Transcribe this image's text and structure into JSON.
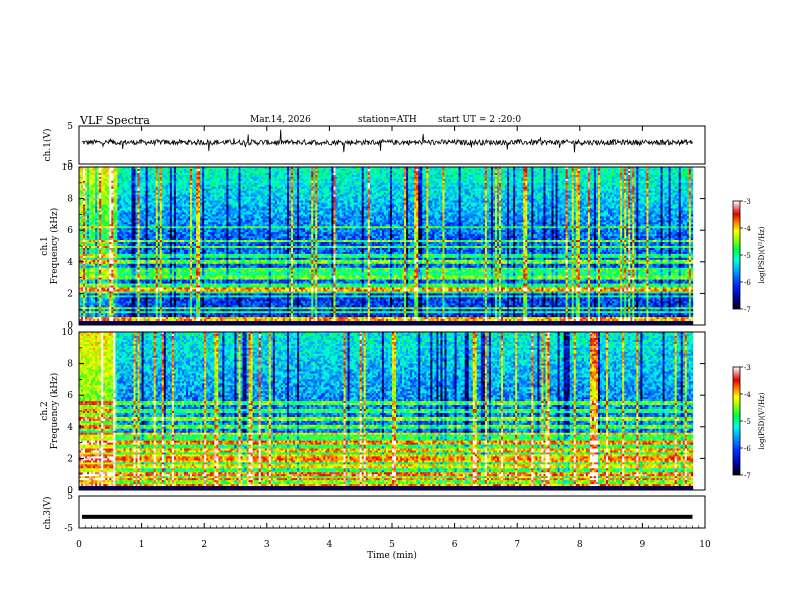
{
  "header": {
    "title": "VLF  Spectra",
    "date": "Mar.14, 2026",
    "station": "station=ATH",
    "start": "start  UT  =   2  :20:0"
  },
  "chart_data": [
    {
      "type": "line",
      "name": "ch1-waveform",
      "ylabel": "ch.1(V)",
      "ylim": [
        -5,
        5
      ],
      "y_ticks": [
        "5",
        "-5"
      ],
      "xlim": [
        0,
        10
      ],
      "description_level": 0.7
    },
    {
      "type": "heatmap",
      "name": "ch1-spectrogram",
      "channel_label": "ch.1",
      "ylabel": "Frequency (kHz)",
      "ylim": [
        0,
        10
      ],
      "y_ticks": [
        "0",
        "2",
        "4",
        "6",
        "8",
        "10"
      ],
      "xlim": [
        0,
        10
      ],
      "bands_khz": [
        0.4,
        0.8,
        1.05,
        1.8,
        2.1,
        2.25,
        2.4,
        2.55,
        3.0,
        3.25,
        3.5,
        4.0,
        4.4,
        4.95,
        5.3,
        6.2
      ],
      "colorbar": {
        "label": "log(PSD)(V²/Hz)",
        "min": -7,
        "max": -3,
        "ticks": [
          "-3",
          "-4",
          "-5",
          "-6",
          "-7"
        ]
      }
    },
    {
      "type": "heatmap",
      "name": "ch2-spectrogram",
      "channel_label": "ch.2",
      "ylabel": "Frequency (kHz)",
      "ylim": [
        0,
        10
      ],
      "y_ticks": [
        "0",
        "2",
        "4",
        "6",
        "8",
        "10"
      ],
      "xlim": [
        0,
        10
      ],
      "bands_khz": [
        0.3,
        0.7,
        1.0,
        1.5,
        1.8,
        2.0,
        2.2,
        2.5,
        3.0,
        3.55,
        4.0,
        4.5,
        5.0,
        5.5
      ],
      "colorbar": {
        "label": "log(PSD)(V²/Hz)",
        "min": -7,
        "max": -3,
        "ticks": [
          "-3",
          "-4",
          "-5",
          "-6",
          "-7"
        ]
      }
    },
    {
      "type": "line",
      "name": "ch3-waveform",
      "ylabel": "ch.3(V)",
      "ylim": [
        -5,
        5
      ],
      "y_ticks": [
        "5",
        "-5"
      ],
      "xlim": [
        0,
        10
      ],
      "description_level": -1.5
    }
  ],
  "x_axis": {
    "label": "Time  (min)",
    "ticks": [
      "0",
      "1",
      "2",
      "3",
      "4",
      "5",
      "6",
      "7",
      "8",
      "9",
      "10"
    ],
    "data_end_min": 9.8
  },
  "colors": {
    "colormap": [
      "#000000",
      "#0000a0",
      "#0028ff",
      "#00a0ff",
      "#00ffe0",
      "#00ff40",
      "#a0ff00",
      "#ffff00",
      "#ff8000",
      "#e00000",
      "#ffffff"
    ]
  }
}
